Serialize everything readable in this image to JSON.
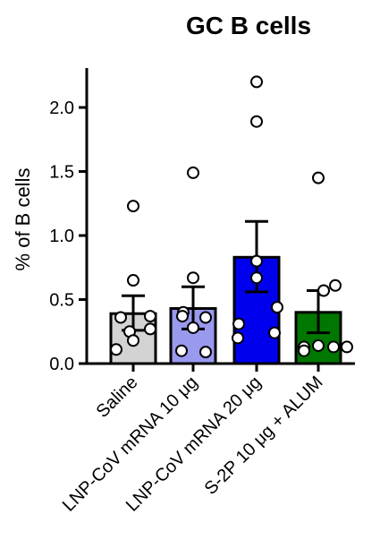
{
  "chart_data": {
    "type": "bar",
    "title": "GC B cells",
    "ylabel": "% of B cells",
    "xlabel": "",
    "ylim": [
      0,
      2.3
    ],
    "yticks": [
      "0.0",
      "0.5",
      "1.0",
      "1.5",
      "2.0"
    ],
    "yticks_values": [
      0,
      0.5,
      1.0,
      1.5,
      2.0
    ],
    "categories": [
      "Saline",
      "LNP-CoV mRNA 10 μg",
      "LNP-CoV mRNA 20 μg",
      "S-2P 10 μg + ALUM"
    ],
    "bar_colors": [
      "#d3d3d3",
      "#9999ee",
      "#0000ee",
      "#007700"
    ],
    "values": [
      0.39,
      0.43,
      0.83,
      0.4
    ],
    "error_upper": [
      0.53,
      0.6,
      1.11,
      0.57
    ],
    "error_lower": [
      0.26,
      0.27,
      0.56,
      0.24
    ],
    "points": [
      [
        1.23,
        0.65,
        0.37,
        0.36,
        0.27,
        0.25,
        0.18,
        0.11
      ],
      [
        1.49,
        0.67,
        0.4,
        0.37,
        0.36,
        0.28,
        0.1,
        0.09
      ],
      [
        2.2,
        1.89,
        0.8,
        0.67,
        0.44,
        0.31,
        0.24,
        0.2
      ],
      [
        1.45,
        0.61,
        0.57,
        0.14,
        0.13,
        0.13,
        0.13,
        0.1
      ]
    ],
    "grid": false
  }
}
